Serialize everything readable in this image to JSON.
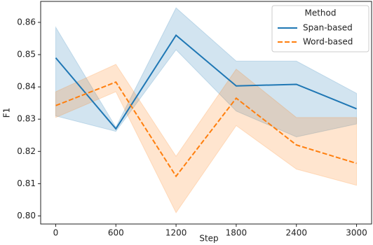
{
  "chart_data": {
    "type": "line",
    "x": [
      0,
      600,
      1200,
      1800,
      2400,
      3000
    ],
    "xlabel": "Step",
    "ylabel": "F1",
    "xlim": [
      -150,
      3150
    ],
    "ylim": [
      0.7975,
      0.8665
    ],
    "xticks": [
      0,
      600,
      1200,
      1800,
      2400,
      3000
    ],
    "yticks": [
      {
        "value": 0.8,
        "label": "0.80"
      },
      0.81,
      0.82,
      0.83,
      0.84,
      0.85,
      0.86
    ],
    "legend_title": "Method",
    "legend": "upper right",
    "series": [
      {
        "name": "Span-based",
        "color": "#1f77b4",
        "dash": "solid",
        "values": [
          0.849,
          0.827,
          0.856,
          0.8403,
          0.8408,
          0.8332
        ],
        "lower": [
          0.831,
          0.8262,
          0.8515,
          0.8325,
          0.8245,
          0.8285
        ],
        "upper": [
          0.8585,
          0.8275,
          0.8645,
          0.848,
          0.848,
          0.838
        ]
      },
      {
        "name": "Word-based",
        "color": "#ff7f0e",
        "dash": "dashed",
        "values": [
          0.8342,
          0.8415,
          0.8123,
          0.8365,
          0.822,
          0.8163
        ],
        "lower": [
          0.8305,
          0.8385,
          0.801,
          0.828,
          0.8145,
          0.8095
        ],
        "upper": [
          0.8385,
          0.847,
          0.8185,
          0.8455,
          0.8305,
          0.8305
        ]
      }
    ]
  }
}
